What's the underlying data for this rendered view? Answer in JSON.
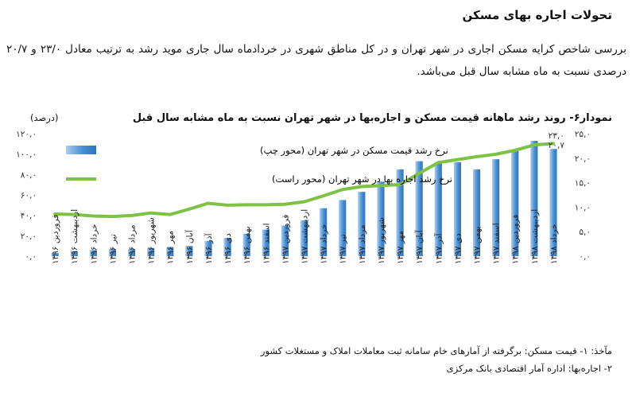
{
  "header": {
    "section_title": "تحولات اجاره بهای مسکن",
    "intro_text": "بررسی شاخص کرایه مسکن اجاری در شهر تهران و در کل مناطق شهری در خردادماه سال جاری موید رشد به ترتیب معادل ۲۳/۰ و ۲۰/۷ درصدی نسبت به ماه مشابه سال قبل می‌باشد."
  },
  "chart_data": {
    "type": "bar",
    "title": "نمودار۶- روند رشد ماهانه قیمت مسکن و اجاره‌بها در شهر تهران نسبت به ماه مشابه سال قبل",
    "left_unit": "(درصد)",
    "categories": [
      "فروردین ۱۳۹۶",
      "اردیبهشت ۱۳۹۶",
      "خرداد ۱۳۹۶",
      "تیر ۱۳۹۶",
      "مرداد ۱۳۹۶",
      "شهریور ۱۳۹۶",
      "مهر ۱۳۹۶",
      "آبان ۱۳۹۶",
      "آذر ۱۳۹۶",
      "دی ۱۳۹۶",
      "بهمن ۱۳۹۶",
      "اسفند ۱۳۹۶",
      "فروردین ۱۳۹۷",
      "اردیبهشت ۱۳۹۷",
      "خرداد ۱۳۹۷",
      "تیر ۱۳۹۷",
      "مرداد ۱۳۹۷",
      "شهریور ۱۳۹۷",
      "مهر ۱۳۹۷",
      "آبان ۱۳۹۷",
      "آذر ۱۳۹۷",
      "دی ۱۳۹۷",
      "بهمن ۱۳۹۷",
      "اسفند ۱۳۹۷",
      "فروردین ۱۳۹۸",
      "اردیبهشت ۱۳۹۸",
      "خرداد ۱۳۹۸"
    ],
    "series": [
      {
        "name": "نرخ رشد قیمت مسکن در شهر تهران (محور چپ)",
        "type": "bar",
        "axis": "left",
        "color": "#4a8fd4",
        "values": [
          3,
          5,
          6,
          7,
          7,
          8,
          9,
          10,
          15,
          18,
          22,
          26,
          30,
          35,
          47,
          55,
          63,
          73,
          85,
          93,
          92,
          92,
          85,
          95,
          103,
          113,
          105
        ]
      },
      {
        "name": "نرخ رشد اجاره بها در شهر تهران (محور راست)",
        "type": "line",
        "axis": "right",
        "color": "#7dc243",
        "values": [
          8.6,
          8.5,
          8.2,
          8.1,
          8.3,
          8.8,
          8.5,
          9.6,
          10.8,
          10.4,
          10.5,
          10.5,
          10.6,
          11.1,
          12.3,
          13.6,
          14.2,
          14.4,
          14.6,
          16.9,
          19.1,
          19.7,
          20.3,
          20.8,
          21.6,
          22.7,
          23.0
        ]
      }
    ],
    "y_left": {
      "min": 0,
      "max": 120,
      "ticks": [
        "۰,۰",
        "۲۰,۰",
        "۴۰,۰",
        "۶۰,۰",
        "۸۰,۰",
        "۱۰۰,۰",
        "۱۲۰,۰"
      ]
    },
    "y_right": {
      "min": 0,
      "max": 25,
      "ticks": [
        "۰,۰",
        "۵,۰",
        "۱۰,۰",
        "۱۵,۰",
        "۲۰,۰",
        "۲۵,۰"
      ]
    },
    "end_labels": [
      "۲۳,۰",
      "۲۰,۷"
    ],
    "legend_position": "top-left",
    "grid": false
  },
  "notes": {
    "line1": "مآخذ: ۱- قیمت مسکن: برگرفته از آمارهای خام سامانه ثبت معاملات املاک و مستغلات کشور",
    "line2": "۲- اجاره‌بها: اداره آمار اقتصادی بانک مرکزی"
  }
}
